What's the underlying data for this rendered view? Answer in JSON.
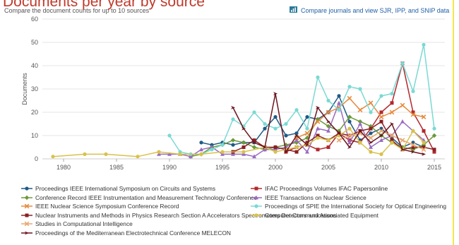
{
  "header": {
    "title": "Documents per year by source",
    "subtitle": "Compare the document counts for up to 10 sources",
    "compare_link": "Compare journals and view SJR, IPP, and SNIP data",
    "compare_icon": "bar-chart-icon",
    "colors": {
      "title": "#c0392b",
      "link": "#1f5fa8"
    }
  },
  "chart_data": {
    "type": "line",
    "ylabel": "Documents",
    "xlim": [
      1978,
      2016
    ],
    "ylim": [
      0,
      60
    ],
    "yticks": [
      0,
      10,
      20,
      30,
      40,
      50,
      60
    ],
    "xticks": [
      1980,
      1985,
      1990,
      1995,
      2000,
      2005,
      2010,
      2015
    ],
    "grid": "horizontal",
    "legend_position": "bottom",
    "series": [
      {
        "name": "Proceedings IEEE International Symposium on Circuits and Systems",
        "color": "#1f5a85",
        "marker": "circle",
        "legend_order": 1,
        "points": [
          [
            1993,
            7
          ],
          [
            1994,
            6
          ],
          [
            1995,
            7
          ],
          [
            1996,
            6
          ],
          [
            1997,
            7
          ],
          [
            1998,
            7
          ],
          [
            1999,
            13
          ],
          [
            2000,
            18
          ],
          [
            2001,
            10
          ],
          [
            2002,
            11
          ],
          [
            2003,
            18
          ],
          [
            2004,
            17
          ],
          [
            2005,
            20
          ],
          [
            2006,
            27
          ],
          [
            2007,
            16
          ],
          [
            2008,
            8
          ],
          [
            2009,
            11
          ],
          [
            2010,
            13
          ],
          [
            2011,
            9
          ],
          [
            2012,
            5
          ],
          [
            2013,
            7
          ],
          [
            2014,
            5
          ]
        ]
      },
      {
        "name": "IFAC Proceedings Volumes IFAC Papersonline",
        "color": "#b3282d",
        "marker": "square",
        "legend_order": 2,
        "points": [
          [
            2001,
            3
          ],
          [
            2002,
            5
          ],
          [
            2003,
            6
          ],
          [
            2004,
            4
          ],
          [
            2005,
            5
          ],
          [
            2006,
            11
          ],
          [
            2007,
            8
          ],
          [
            2008,
            7
          ],
          [
            2009,
            13
          ],
          [
            2010,
            20
          ],
          [
            2011,
            24
          ],
          [
            2012,
            41
          ],
          [
            2013,
            20
          ],
          [
            2014,
            12
          ],
          [
            2015,
            3
          ]
        ]
      },
      {
        "name": "Conference Record IEEE Instrumentation and Measurement Technology Conference",
        "color": "#6b9a3a",
        "marker": "diamond",
        "legend_order": 3,
        "points": [
          [
            1992,
            1
          ],
          [
            1993,
            2
          ],
          [
            1994,
            5
          ],
          [
            1995,
            6
          ],
          [
            1996,
            8
          ],
          [
            1997,
            7
          ],
          [
            1998,
            5
          ],
          [
            1999,
            4
          ],
          [
            2000,
            5
          ],
          [
            2001,
            6
          ],
          [
            2002,
            7
          ],
          [
            2003,
            9
          ],
          [
            2004,
            17
          ],
          [
            2005,
            14
          ],
          [
            2006,
            12
          ],
          [
            2007,
            18
          ],
          [
            2008,
            16
          ],
          [
            2009,
            14
          ],
          [
            2010,
            10
          ],
          [
            2011,
            7
          ],
          [
            2012,
            5
          ],
          [
            2013,
            4
          ],
          [
            2014,
            6
          ],
          [
            2015,
            10
          ]
        ]
      },
      {
        "name": "IEEE Transactions on Nuclear Science",
        "color": "#9a6bc0",
        "marker": "triangle",
        "legend_order": 4,
        "points": [
          [
            1989,
            2
          ],
          [
            1990,
            2
          ],
          [
            1991,
            2
          ],
          [
            1992,
            1
          ],
          [
            1993,
            4
          ],
          [
            1994,
            5
          ],
          [
            1995,
            2
          ],
          [
            1996,
            2
          ],
          [
            1997,
            2
          ],
          [
            1998,
            1
          ],
          [
            1999,
            4
          ],
          [
            2000,
            4
          ],
          [
            2001,
            5
          ],
          [
            2002,
            8
          ],
          [
            2003,
            3
          ],
          [
            2004,
            13
          ],
          [
            2005,
            12
          ],
          [
            2006,
            24
          ],
          [
            2007,
            7
          ],
          [
            2008,
            15
          ],
          [
            2009,
            5
          ],
          [
            2010,
            8
          ],
          [
            2011,
            10
          ],
          [
            2012,
            16
          ],
          [
            2013,
            12
          ],
          [
            2014,
            8
          ]
        ]
      },
      {
        "name": "IEEE Nuclear Science Symposium Conference Record",
        "color": "#e68a3c",
        "marker": "x",
        "legend_order": 5,
        "points": [
          [
            2002,
            9
          ],
          [
            2003,
            11
          ],
          [
            2004,
            16
          ],
          [
            2005,
            20
          ],
          [
            2006,
            22
          ],
          [
            2007,
            26
          ],
          [
            2008,
            21
          ],
          [
            2009,
            24
          ],
          [
            2010,
            18
          ],
          [
            2011,
            20
          ],
          [
            2012,
            23
          ],
          [
            2013,
            19
          ],
          [
            2014,
            18
          ]
        ]
      },
      {
        "name": "Proceedings of SPIE the International Society for Optical Engineering",
        "color": "#7ad9d3",
        "marker": "circle",
        "legend_order": 6,
        "points": [
          [
            1990,
            10
          ],
          [
            1991,
            3
          ],
          [
            1992,
            2
          ],
          [
            1993,
            2
          ],
          [
            1994,
            4
          ],
          [
            1995,
            6
          ],
          [
            1996,
            17
          ],
          [
            1997,
            14
          ],
          [
            1998,
            20
          ],
          [
            1999,
            15
          ],
          [
            2000,
            13
          ],
          [
            2001,
            15
          ],
          [
            2002,
            21
          ],
          [
            2003,
            13
          ],
          [
            2004,
            35
          ],
          [
            2005,
            25
          ],
          [
            2006,
            21
          ],
          [
            2007,
            31
          ],
          [
            2008,
            30
          ],
          [
            2009,
            20
          ],
          [
            2010,
            27
          ],
          [
            2011,
            28
          ],
          [
            2012,
            41
          ],
          [
            2013,
            29
          ],
          [
            2014,
            49
          ],
          [
            2015,
            13
          ]
        ]
      },
      {
        "name": "Nuclear Instruments and Methods in Physics Research Section A Accelerators Spectrometers Detectors and Associated Equipment",
        "color": "#8a1f24",
        "marker": "square",
        "legend_order": 7,
        "points": [
          [
            1996,
            3
          ],
          [
            1997,
            5
          ],
          [
            1998,
            8
          ],
          [
            1999,
            5
          ],
          [
            2000,
            5
          ],
          [
            2001,
            4
          ],
          [
            2002,
            3
          ],
          [
            2003,
            7
          ],
          [
            2004,
            10
          ],
          [
            2005,
            8
          ],
          [
            2006,
            11
          ],
          [
            2007,
            10
          ],
          [
            2008,
            12
          ],
          [
            2009,
            13
          ],
          [
            2010,
            16
          ],
          [
            2011,
            8
          ],
          [
            2012,
            4
          ],
          [
            2013,
            5
          ],
          [
            2014,
            5
          ],
          [
            2015,
            4
          ]
        ]
      },
      {
        "name": "Computer Communications",
        "color": "#d8c24a",
        "marker": "circle",
        "legend_order": 8,
        "points": [
          [
            1979,
            1
          ],
          [
            1982,
            2
          ],
          [
            1984,
            2
          ],
          [
            1987,
            1
          ],
          [
            1989,
            3
          ],
          [
            1991,
            2
          ],
          [
            1993,
            2
          ],
          [
            1995,
            3
          ],
          [
            1997,
            3
          ],
          [
            1999,
            5
          ],
          [
            2000,
            3
          ],
          [
            2001,
            4
          ],
          [
            2002,
            5
          ],
          [
            2003,
            6
          ],
          [
            2004,
            9
          ],
          [
            2005,
            8
          ],
          [
            2006,
            10
          ],
          [
            2007,
            13
          ],
          [
            2008,
            7
          ],
          [
            2009,
            3
          ],
          [
            2010,
            2
          ],
          [
            2011,
            7
          ],
          [
            2012,
            4
          ],
          [
            2013,
            12
          ],
          [
            2014,
            7
          ]
        ]
      },
      {
        "name": "Studies in Computational Intelligence",
        "color": "#e8a870",
        "marker": "x",
        "legend_order": 9,
        "points": [
          [
            2006,
            8
          ],
          [
            2007,
            10
          ],
          [
            2008,
            11
          ],
          [
            2009,
            9
          ],
          [
            2010,
            12
          ],
          [
            2011,
            10
          ],
          [
            2012,
            8
          ],
          [
            2013,
            6
          ],
          [
            2014,
            4
          ]
        ]
      },
      {
        "name": "Proceedings of the Mediterranean Electrotechnical Conference MELECON",
        "color": "#6b1620",
        "marker": "arrow",
        "legend_order": 10,
        "points": [
          [
            1996,
            22
          ],
          [
            1997,
            13
          ],
          [
            1998,
            7
          ],
          [
            1999,
            5
          ],
          [
            2000,
            28
          ],
          [
            2001,
            3
          ],
          [
            2002,
            10
          ],
          [
            2003,
            6
          ],
          [
            2004,
            22
          ],
          [
            2005,
            16
          ],
          [
            2006,
            11
          ],
          [
            2007,
            5
          ],
          [
            2008,
            12
          ],
          [
            2009,
            7
          ],
          [
            2010,
            10
          ],
          [
            2011,
            15
          ],
          [
            2012,
            4
          ],
          [
            2013,
            3
          ],
          [
            2014,
            2
          ]
        ]
      }
    ]
  }
}
